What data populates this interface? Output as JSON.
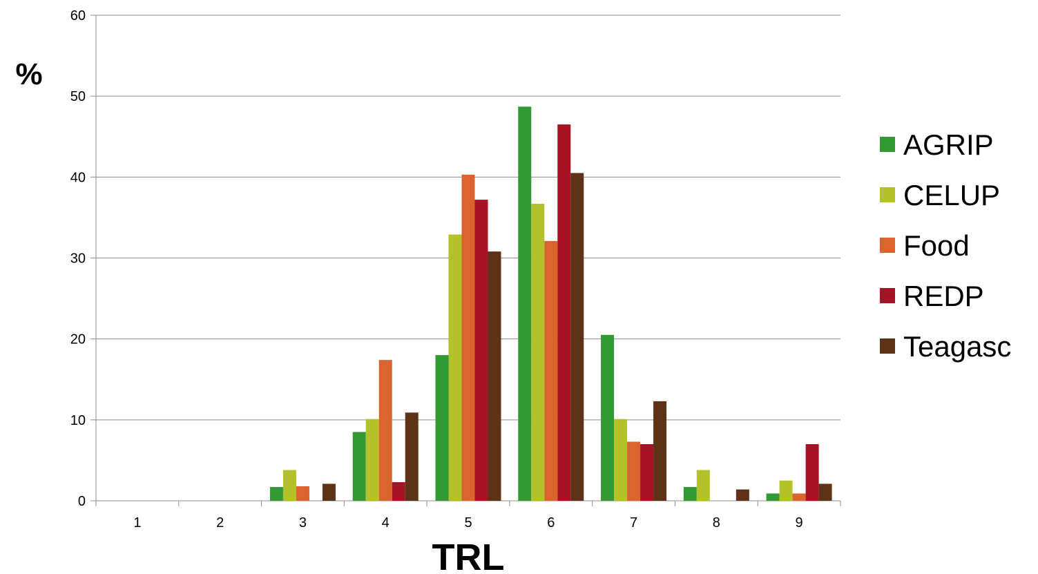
{
  "chart_data": {
    "type": "bar",
    "title": "",
    "xlabel": "TRL",
    "ylabel": "%",
    "categories": [
      "1",
      "2",
      "3",
      "4",
      "5",
      "6",
      "7",
      "8",
      "9"
    ],
    "ylim": [
      0,
      60
    ],
    "yticks": [
      "0",
      "10",
      "20",
      "30",
      "40",
      "50",
      "60"
    ],
    "grid": true,
    "legend_position": "right",
    "series": [
      {
        "name": "AGRIP",
        "color": "#339933",
        "values": [
          0,
          0,
          1.7,
          8.5,
          18.0,
          48.7,
          20.5,
          1.7,
          0.9
        ]
      },
      {
        "name": "CELUP",
        "color": "#b3c12a",
        "values": [
          0,
          0,
          3.8,
          10.1,
          32.9,
          36.7,
          10.1,
          3.8,
          2.5
        ]
      },
      {
        "name": "Food",
        "color": "#d9642d",
        "values": [
          0,
          0,
          1.8,
          17.4,
          40.3,
          32.1,
          7.3,
          0,
          0.9
        ]
      },
      {
        "name": "REDP",
        "color": "#a51424",
        "values": [
          0,
          0,
          0,
          2.3,
          37.2,
          46.5,
          7.0,
          0,
          7.0
        ]
      },
      {
        "name": "Teagasc",
        "color": "#5c3317",
        "values": [
          0,
          0,
          2.1,
          10.9,
          30.8,
          40.5,
          12.3,
          1.4,
          2.1
        ]
      }
    ]
  }
}
